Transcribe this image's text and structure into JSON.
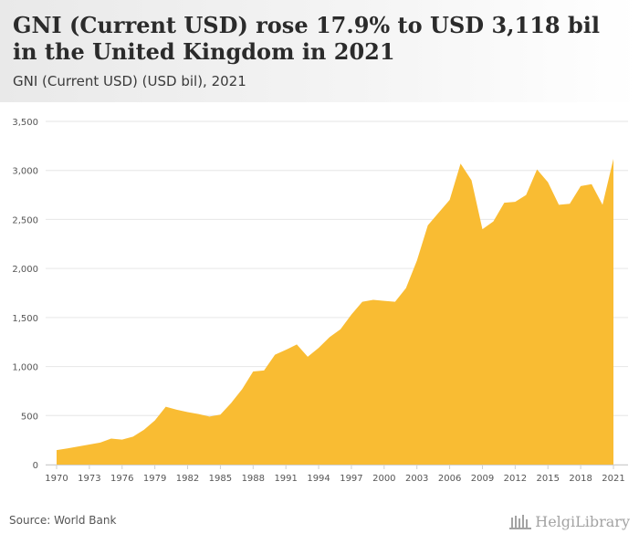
{
  "title": "GNI (Current USD) rose 17.9% to USD 3,118 bil in the United Kingdom in 2021",
  "subtitle": "GNI (Current USD) (USD bil), 2021",
  "source": "Source: World Bank",
  "brand": "HelgiLibrary",
  "colors": {
    "area": "#f9bc33",
    "grid": "#e6e6e6",
    "axis": "#cfcfcf",
    "tick_text": "#555555"
  },
  "chart_data": {
    "type": "area",
    "title": "",
    "xlabel": "",
    "ylabel": "",
    "x": [
      1970,
      1971,
      1972,
      1973,
      1974,
      1975,
      1976,
      1977,
      1978,
      1979,
      1980,
      1981,
      1982,
      1983,
      1984,
      1985,
      1986,
      1987,
      1988,
      1989,
      1990,
      1991,
      1992,
      1993,
      1994,
      1995,
      1996,
      1997,
      1998,
      1999,
      2000,
      2001,
      2002,
      2003,
      2004,
      2005,
      2006,
      2007,
      2008,
      2009,
      2010,
      2011,
      2012,
      2013,
      2014,
      2015,
      2016,
      2017,
      2018,
      2019,
      2020,
      2021
    ],
    "series": [
      {
        "values": [
          148,
          165,
          185,
          205,
          225,
          265,
          255,
          285,
          355,
          450,
          590,
          560,
          535,
          515,
          490,
          510,
          630,
          770,
          950,
          960,
          1120,
          1170,
          1225,
          1100,
          1190,
          1300,
          1380,
          1530,
          1660,
          1680,
          1670,
          1660,
          1800,
          2080,
          2440,
          2570,
          2700,
          3070,
          2900,
          2400,
          2480,
          2670,
          2680,
          2750,
          3010,
          2880,
          2650,
          2660,
          2840,
          2860,
          2650,
          3118
        ]
      }
    ],
    "xticks": [
      "1970",
      "1973",
      "1976",
      "1979",
      "1982",
      "1985",
      "1988",
      "1991",
      "1994",
      "1997",
      "2000",
      "2003",
      "2006",
      "2009",
      "2012",
      "2015",
      "2018",
      "2021"
    ],
    "yticks": [
      "0",
      "500",
      "1,000",
      "1,500",
      "2,000",
      "2,500",
      "3,000",
      "3,500"
    ],
    "ylim": [
      0,
      3500
    ],
    "xlim": [
      1970,
      2021
    ],
    "grid": true,
    "legend": "none"
  }
}
